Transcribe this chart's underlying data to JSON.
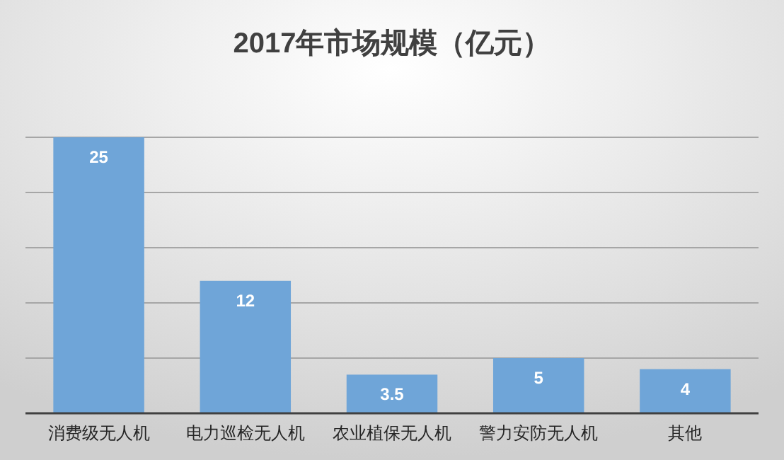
{
  "chart_data": {
    "type": "bar",
    "title": "2017年市场规模（亿元）",
    "categories": [
      "消费级无人机",
      "电力巡检无人机",
      "农业植保无人机",
      "警力安防无人机",
      "其他"
    ],
    "values": [
      25,
      12,
      3.5,
      5,
      4
    ],
    "color": "#6fa5d8",
    "ylim": [
      0,
      25
    ],
    "yticks": [
      {
        "value": 0,
        "label": null
      },
      {
        "value": 5,
        "label": null
      },
      {
        "value": 10,
        "label": null
      },
      {
        "value": 15,
        "label": null
      },
      {
        "value": 20,
        "label": null
      },
      {
        "value": 25,
        "label": null
      }
    ],
    "grid": "y",
    "data_labels": true
  }
}
